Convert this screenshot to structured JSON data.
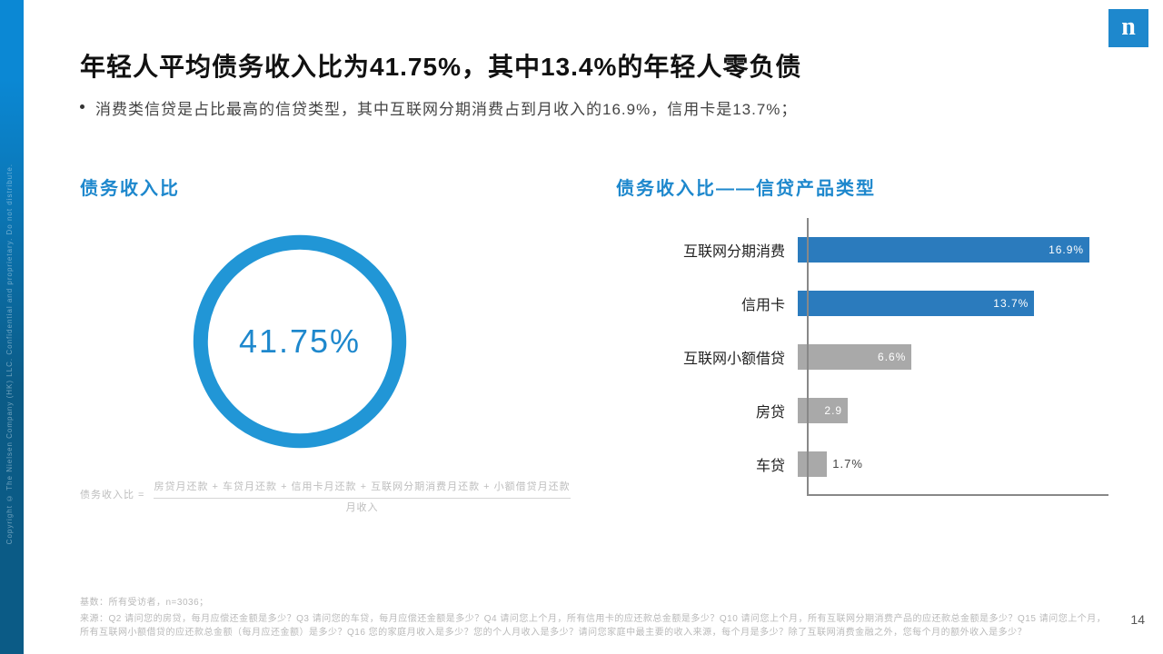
{
  "logo_letter": "n",
  "page_number": "14",
  "edge_text": "Copyright © The Nielsen Company (HK) LLC. Confidential and proprietary. Do not distribute.",
  "title": "年轻人平均债务收入比为41.75%，其中13.4%的年轻人零负债",
  "subtitle": "消费类信贷是占比最高的信贷类型，其中互联网分期消费占到月收入的16.9%，信用卡是13.7%；",
  "left_chart": {
    "section_title": "债务收入比",
    "type": "donut",
    "center_text": "41.75%",
    "ring_color": "#2196d6",
    "ring_inner_color": "#ffffff",
    "ring_stroke_width": 16,
    "background_color": "#ffffff"
  },
  "formula": {
    "lhs": "债务收入比 =",
    "numerator": "房贷月还款 + 车贷月还款 + 信用卡月还款 + 互联网分期消费月还款 + 小额借贷月还款",
    "denominator": "月收入"
  },
  "right_chart": {
    "section_title": "债务收入比——信贷产品类型",
    "type": "bar",
    "max_value": 18,
    "axis_color": "#888888",
    "bars": [
      {
        "label": "互联网分期消费",
        "value": 16.9,
        "display": "16.9%",
        "color": "#2b7bbd",
        "value_inside": true
      },
      {
        "label": "信用卡",
        "value": 13.7,
        "display": "13.7%",
        "color": "#2b7bbd",
        "value_inside": true
      },
      {
        "label": "互联网小额借贷",
        "value": 6.6,
        "display": "6.6%",
        "color": "#a9a9a9",
        "value_inside": true
      },
      {
        "label": "房贷",
        "value": 2.9,
        "display": "2.9",
        "color": "#a9a9a9",
        "value_inside": true
      },
      {
        "label": "车贷",
        "value": 1.7,
        "display": "1.7%",
        "color": "#a9a9a9",
        "value_inside": false
      }
    ]
  },
  "footnote": {
    "head": "基数：所有受访者，n=3036；",
    "body": "来源：Q2 请问您的房贷，每月应偿还金额是多少？Q3 请问您的车贷，每月应偿还金额是多少？Q4 请问您上个月，所有信用卡的应还款总金额是多少？Q10 请问您上个月，所有互联网分期消费产品的应还款总金额是多少？Q15 请问您上个月，所有互联网小额借贷的应还款总金额（每月应还金额）是多少？Q16 您的家庭月收入是多少？您的个人月收入是多少？请问您家庭中最主要的收入来源，每个月是多少？除了互联网消费金融之外，您每个月的额外收入是多少？"
  }
}
